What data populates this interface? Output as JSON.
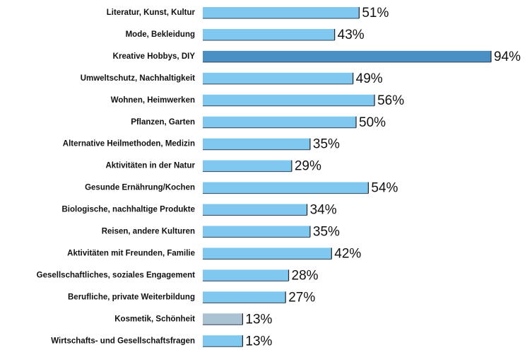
{
  "chart_data": {
    "type": "barh",
    "categories": [
      "Literatur, Kunst, Kultur",
      "Mode, Bekleidung",
      "Kreative Hobbys, DIY",
      "Umweltschutz, Nachhaltigkeit",
      "Wohnen, Heimwerken",
      "Pflanzen, Garten",
      "Alternative Heilmethoden, Medizin",
      "Aktivitäten in der Natur",
      "Gesunde Ernährung/Kochen",
      "Biologische, nachhaltige Produkte",
      "Reisen, andere Kulturen",
      "Aktivitäten mit Freunden, Familie",
      "Gesellschaftliches, soziales Engagement",
      "Berufliche, private Weiterbildung",
      "Kosmetik, Schönheit",
      "Wirtschafts- und Gesellschaftsfragen"
    ],
    "values": [
      51,
      43,
      94,
      49,
      56,
      50,
      35,
      29,
      54,
      34,
      35,
      42,
      28,
      27,
      13,
      13
    ],
    "value_labels": [
      "51%",
      "43%",
      "94%",
      "49%",
      "56%",
      "50%",
      "35%",
      "29%",
      "54%",
      "34%",
      "35%",
      "42%",
      "28%",
      "27%",
      "13%",
      "13%"
    ],
    "colors": [
      "#80c8f0",
      "#80c8f0",
      "#4a90c4",
      "#80c8f0",
      "#80c8f0",
      "#80c8f0",
      "#80c8f0",
      "#80c8f0",
      "#80c8f0",
      "#80c8f0",
      "#80c8f0",
      "#80c8f0",
      "#80c8f0",
      "#80c8f0",
      "#aac2d2",
      "#80c8f0"
    ]
  }
}
